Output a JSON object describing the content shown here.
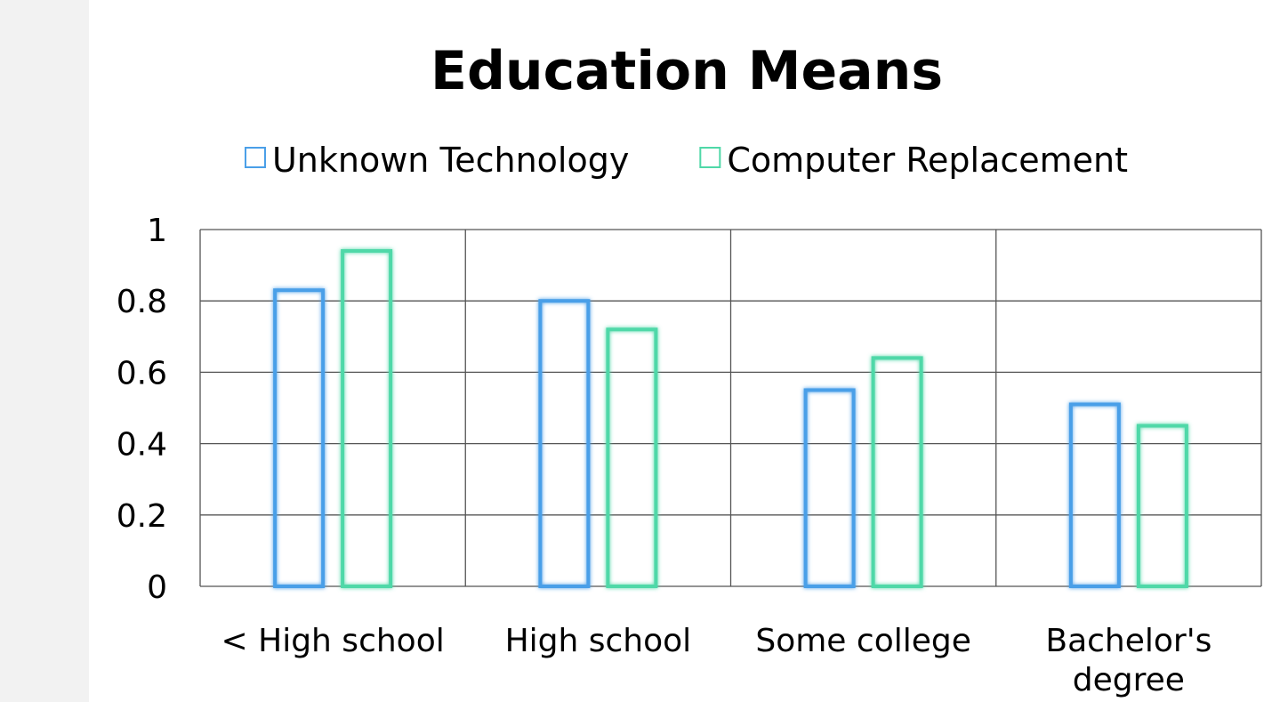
{
  "chart_data": {
    "type": "bar",
    "title": "Education Means",
    "categories": [
      "< High school",
      "High school",
      "Some college",
      "Bachelor's degree"
    ],
    "series": [
      {
        "name": "Unknown Technology",
        "values": [
          0.83,
          0.8,
          0.55,
          0.51
        ]
      },
      {
        "name": "Computer Replacement",
        "values": [
          0.94,
          0.72,
          0.64,
          0.45
        ]
      }
    ],
    "ylim": [
      0,
      1
    ],
    "yticks": [
      0,
      0.2,
      0.4,
      0.6,
      0.8,
      1
    ],
    "ytick_labels": [
      "0",
      "0.2",
      "0.4",
      "0.6",
      "0.8",
      "1"
    ],
    "xlabel": "",
    "ylabel": "",
    "grid": true,
    "legend_position": "top",
    "colors": {
      "Unknown Technology": "#4a9fe8",
      "Computer Replacement": "#4fd8a8",
      "grid": "#555555"
    }
  }
}
